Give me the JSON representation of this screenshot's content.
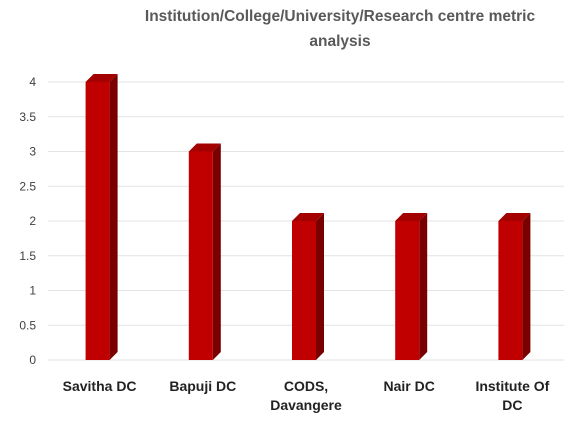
{
  "chart_data": {
    "type": "bar",
    "title": "Institution/College/University/Research centre metric analysis",
    "categories": [
      [
        "Savitha DC"
      ],
      [
        "Bapuji DC"
      ],
      [
        "CODS,",
        "Davangere"
      ],
      [
        "Nair DC"
      ],
      [
        "Institute Of",
        "DC"
      ]
    ],
    "values": [
      4,
      3,
      2,
      2,
      2
    ],
    "ylim": [
      0,
      4
    ],
    "yticks": [
      "0",
      "0.5",
      "1",
      "1.5",
      "2",
      "2.5",
      "3",
      "3.5",
      "4"
    ],
    "grid": true,
    "bar_colors": {
      "front": "#c00000",
      "side": "#7a0000",
      "top": "#a30000"
    }
  }
}
